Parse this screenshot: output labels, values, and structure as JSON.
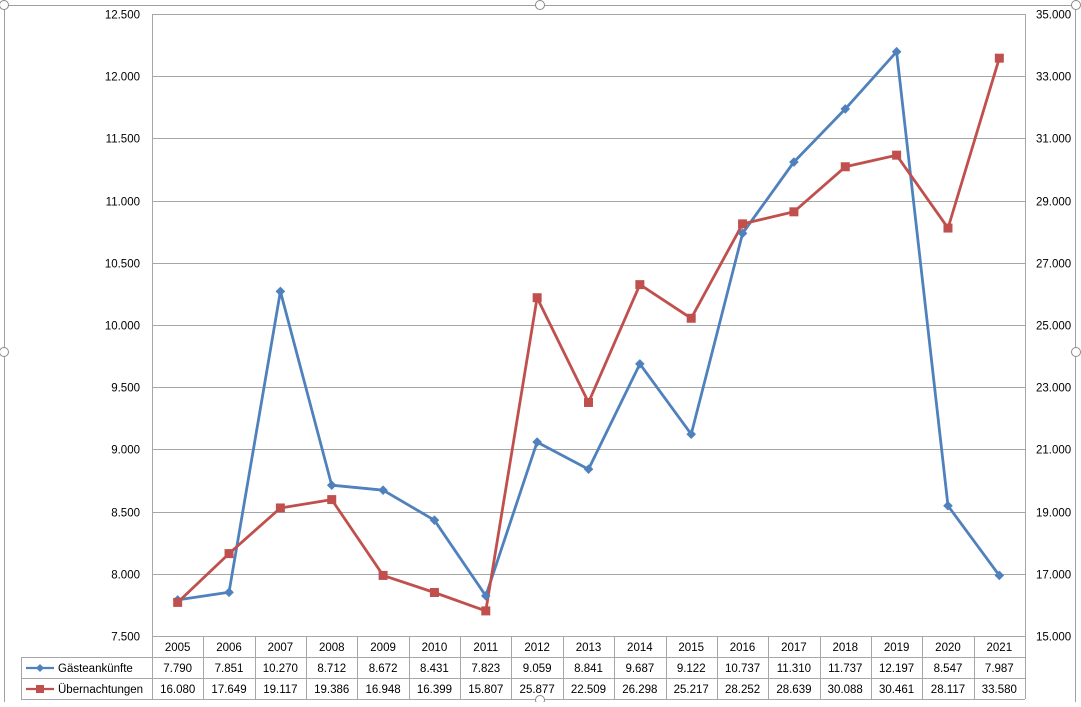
{
  "colors": {
    "series1": "#4f81bd",
    "series2": "#c0504d",
    "grid": "#a6a6a6",
    "text": "#000000",
    "frame": "#a0a0a0"
  },
  "chart_data": {
    "type": "line",
    "title": "",
    "xlabel": "",
    "ylabel": "",
    "categories": [
      "2005",
      "2006",
      "2007",
      "2008",
      "2009",
      "2010",
      "2011",
      "2012",
      "2013",
      "2014",
      "2015",
      "2016",
      "2017",
      "2018",
      "2019",
      "2020",
      "2021"
    ],
    "series": [
      {
        "name": "Gästeankünfte",
        "axis": "left",
        "marker": "diamond",
        "values": [
          7790,
          7851,
          10270,
          8712,
          8672,
          8431,
          7823,
          9059,
          8841,
          9687,
          9122,
          10737,
          11310,
          11737,
          12197,
          8547,
          7987
        ],
        "labels": [
          "7.790",
          "7.851",
          "10.270",
          "8.712",
          "8.672",
          "8.431",
          "7.823",
          "9.059",
          "8.841",
          "9.687",
          "9.122",
          "10.737",
          "11.310",
          "11.737",
          "12.197",
          "8.547",
          "7.987"
        ]
      },
      {
        "name": "Übernachtungen",
        "axis": "right",
        "marker": "square",
        "values": [
          16080,
          17649,
          19117,
          19386,
          16948,
          16399,
          15807,
          25877,
          22509,
          26298,
          25217,
          28252,
          28639,
          30088,
          30461,
          28117,
          33580
        ],
        "labels": [
          "16.080",
          "17.649",
          "19.117",
          "19.386",
          "16.948",
          "16.399",
          "15.807",
          "25.877",
          "22.509",
          "26.298",
          "25.217",
          "28.252",
          "28.639",
          "30.088",
          "30.461",
          "28.117",
          "33.580"
        ]
      }
    ],
    "y_left": {
      "ylim": [
        7500,
        12500
      ],
      "ticks": [
        7500,
        8000,
        8500,
        9000,
        9500,
        10000,
        10500,
        11000,
        11500,
        12000,
        12500
      ],
      "tick_labels": [
        "7.500",
        "8.000",
        "8.500",
        "9.000",
        "9.500",
        "10.000",
        "10.500",
        "11.000",
        "11.500",
        "12.000",
        "12.500"
      ]
    },
    "y_right": {
      "ylim": [
        15000,
        35000
      ],
      "ticks": [
        15000,
        17000,
        19000,
        21000,
        23000,
        25000,
        27000,
        29000,
        31000,
        33000,
        35000
      ],
      "tick_labels": [
        "15.000",
        "17.000",
        "19.000",
        "21.000",
        "23.000",
        "25.000",
        "27.000",
        "29.000",
        "31.000",
        "33.000",
        "35.000"
      ]
    },
    "grid": true,
    "legend": "data-table-below"
  }
}
